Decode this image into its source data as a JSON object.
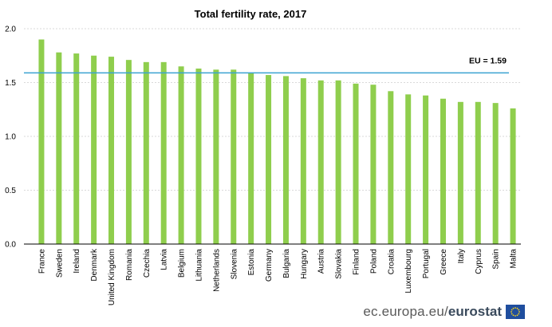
{
  "chart_data": {
    "type": "bar",
    "title": "Total fertility rate, 2017",
    "xlabel": "",
    "ylabel": "",
    "ylim": [
      0,
      2.0
    ],
    "yticks": [
      "0.0",
      "0.5",
      "1.0",
      "1.5",
      "2.0"
    ],
    "grid": true,
    "categories": [
      "France",
      "Sweden",
      "Ireland",
      "Denmark",
      "United Kingdom",
      "Romania",
      "Czechia",
      "Latvia",
      "Belgium",
      "Lithuania",
      "Netherlands",
      "Slovenia",
      "Estonia",
      "Germany",
      "Bulgaria",
      "Hungary",
      "Austria",
      "Slovakia",
      "Finland",
      "Poland",
      "Croatia",
      "Luxembourg",
      "Portugal",
      "Greece",
      "Italy",
      "Cyprus",
      "Spain",
      "Malta"
    ],
    "values": [
      1.9,
      1.78,
      1.77,
      1.75,
      1.74,
      1.71,
      1.69,
      1.69,
      1.65,
      1.63,
      1.62,
      1.62,
      1.59,
      1.57,
      1.56,
      1.54,
      1.52,
      1.52,
      1.49,
      1.48,
      1.42,
      1.39,
      1.38,
      1.35,
      1.32,
      1.32,
      1.31,
      1.26
    ],
    "reference_line": {
      "label": "EU = 1.59",
      "value": 1.59
    },
    "colors": {
      "bar": "#8fce4d",
      "reference": "#3aa3d1",
      "grid": "#d9d9d9",
      "axis": "#000000"
    }
  },
  "footer": {
    "site": "ec.europa.eu/",
    "brand": "eurostat",
    "flag_icon": "eu-flag-icon"
  }
}
